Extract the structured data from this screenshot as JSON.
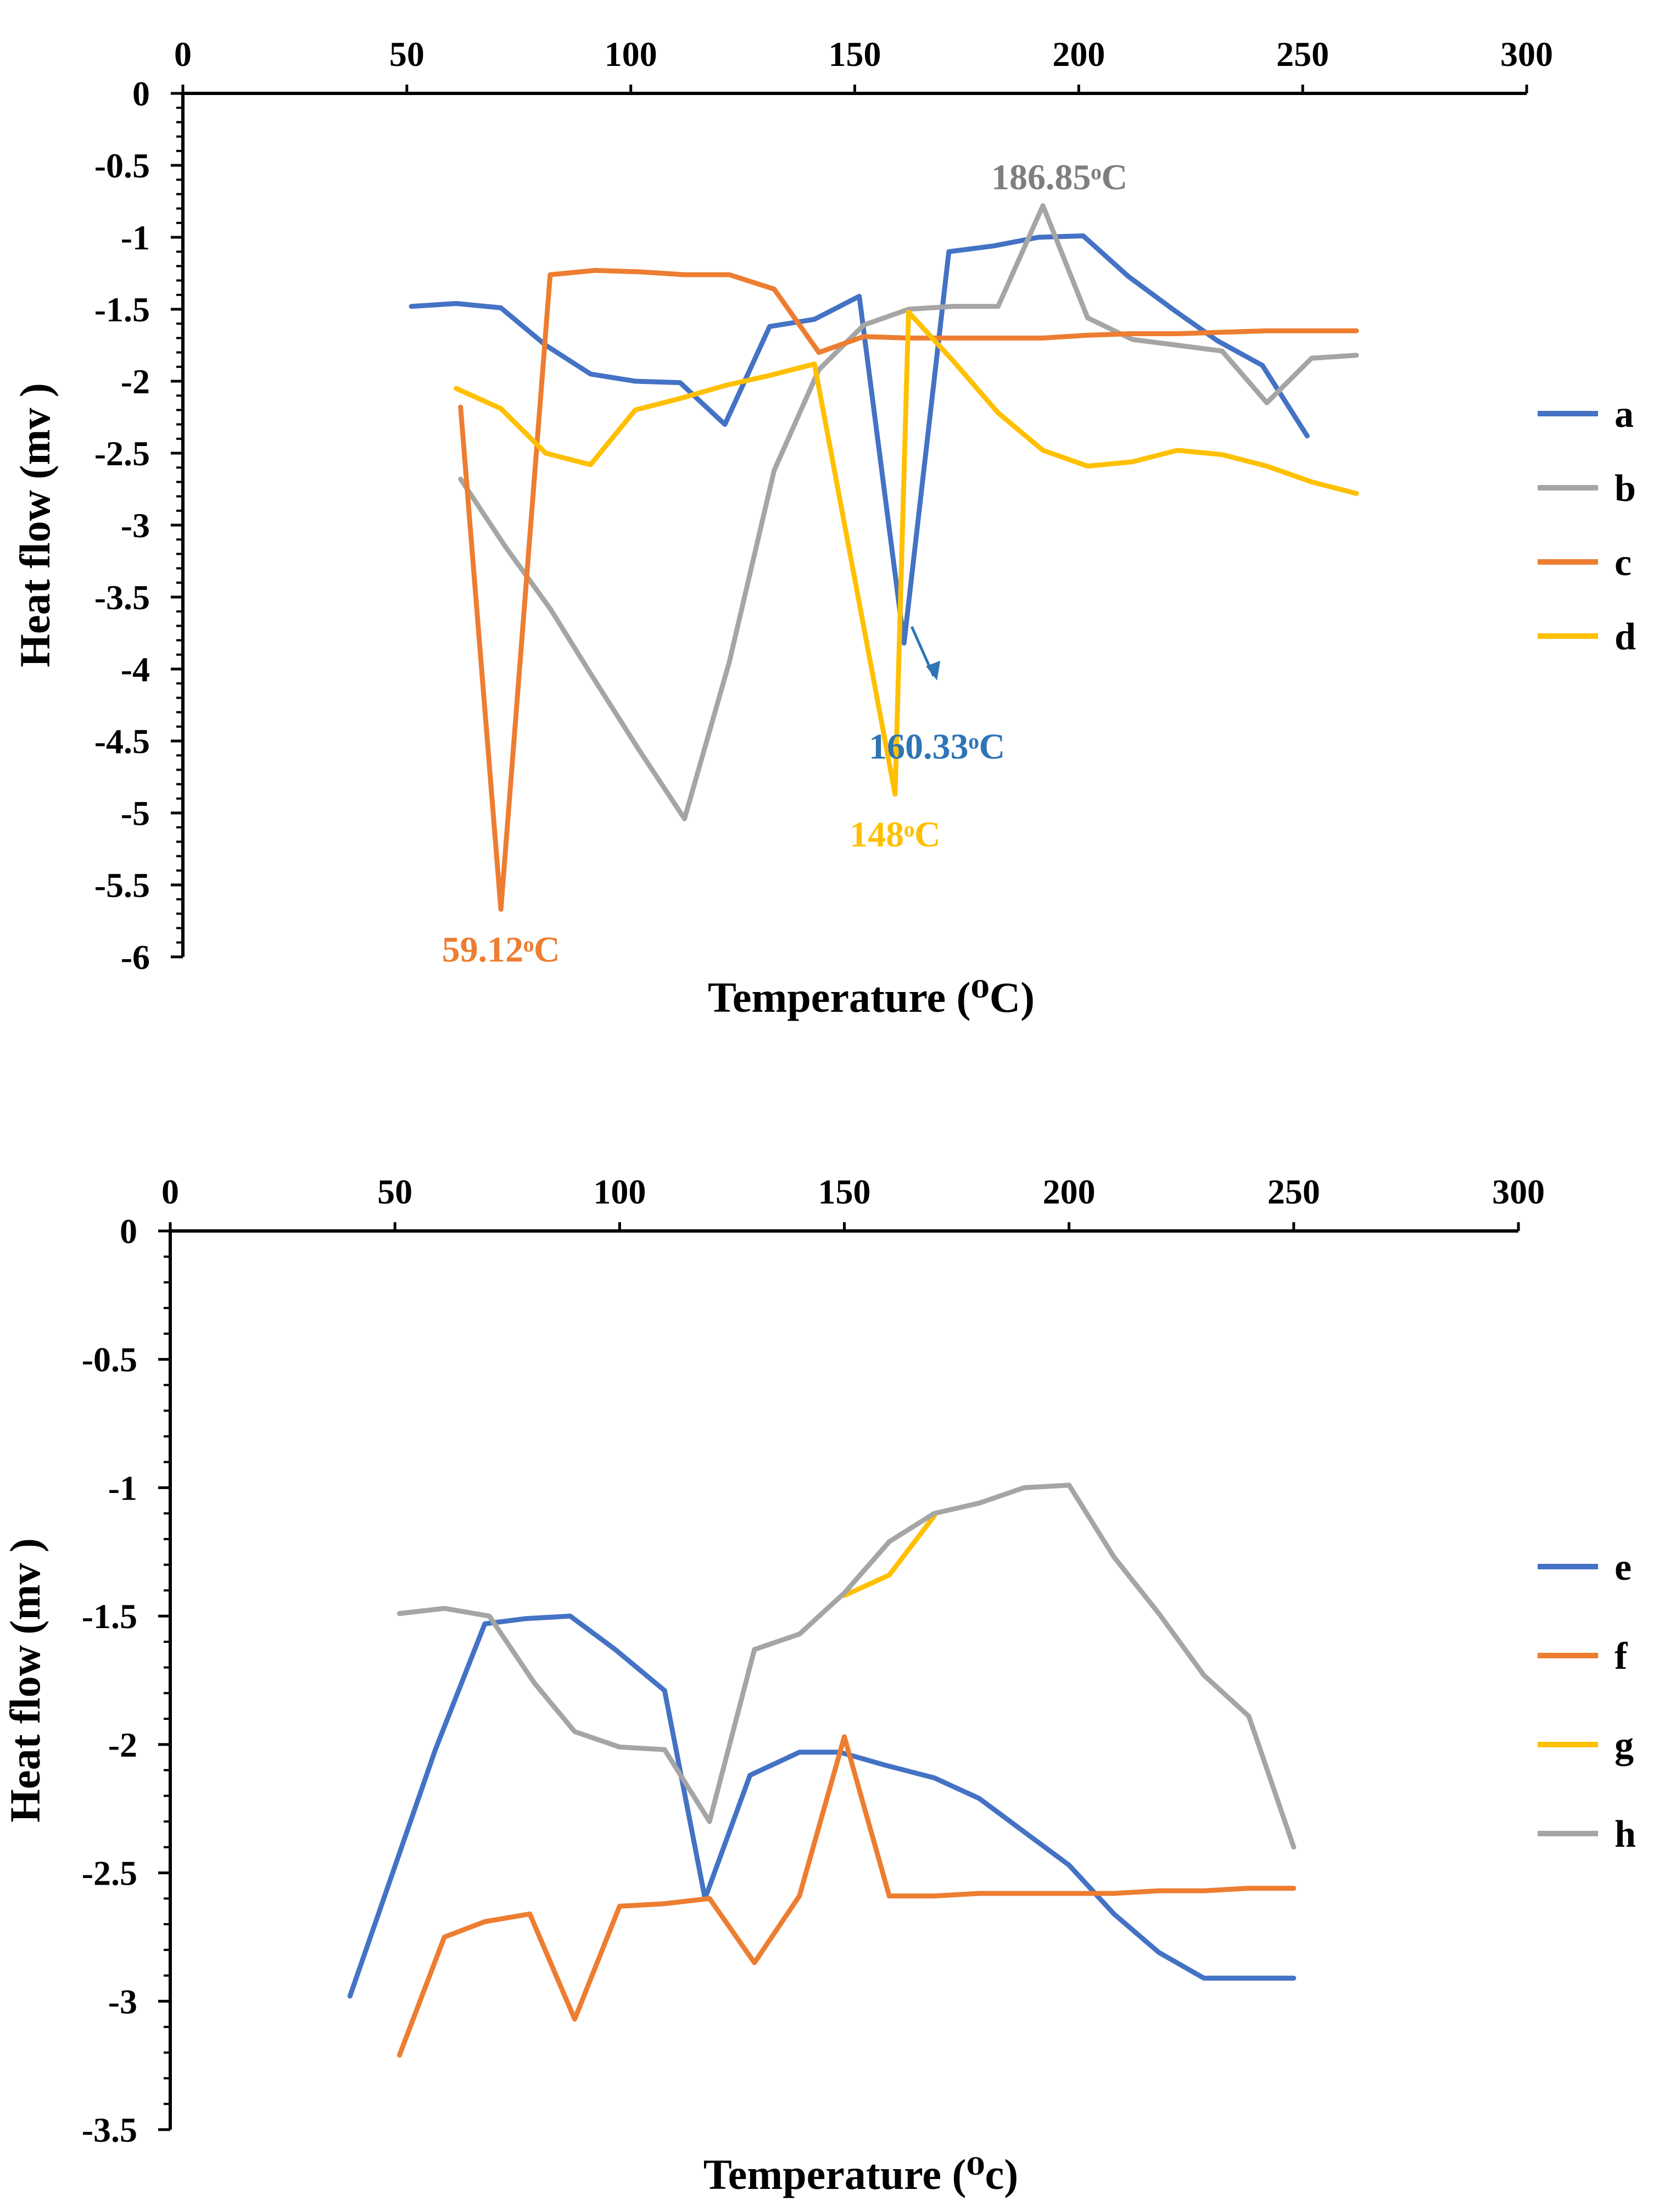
{
  "chart_data": [
    {
      "type": "line",
      "xlabel": "Temperature  (⁰C)",
      "ylabel": "Heat flow (mv )",
      "xlim": [
        0,
        300
      ],
      "ylim": [
        -6,
        0
      ],
      "xticks": [
        "0",
        "50",
        "100",
        "150",
        "200",
        "250",
        "300"
      ],
      "yticks": [
        "0",
        "-0.5",
        "-1",
        "-1.5",
        "-2",
        "-2.5",
        "-3",
        "-3.5",
        "-4",
        "-4.5",
        "-5",
        "-5.5",
        "-6"
      ],
      "legend_position": "right",
      "series": [
        {
          "name": "a",
          "color": "#4472C4",
          "x": [
            51,
            61,
            71,
            81,
            91,
            101,
            111,
            121,
            131,
            141,
            151,
            161,
            171,
            181,
            191,
            201,
            211,
            221,
            231,
            241,
            251
          ],
          "y": [
            -1.48,
            -1.46,
            -1.49,
            -1.75,
            -1.95,
            -2.0,
            -2.01,
            -2.3,
            -1.62,
            -1.57,
            -1.41,
            -3.82,
            -1.1,
            -1.06,
            -1.0,
            -0.99,
            -1.27,
            -1.5,
            -1.72,
            -1.89,
            -2.38
          ]
        },
        {
          "name": "b",
          "color": "#A5A5A5",
          "x": [
            62,
            72,
            82,
            92,
            102,
            112,
            122,
            132,
            142,
            152,
            162,
            172,
            182,
            192,
            202,
            212,
            222,
            232,
            242,
            252,
            262
          ],
          "y": [
            -2.68,
            -3.15,
            -3.58,
            -4.08,
            -4.57,
            -5.04,
            -3.95,
            -2.62,
            -1.92,
            -1.61,
            -1.5,
            -1.48,
            -1.48,
            -0.78,
            -1.56,
            -1.71,
            -1.75,
            -1.79,
            -2.15,
            -1.84,
            -1.82
          ]
        },
        {
          "name": "c",
          "color": "#ED7D31",
          "x": [
            62,
            71,
            82,
            92,
            102,
            112,
            122,
            132,
            142,
            152,
            162,
            172,
            182,
            192,
            202,
            212,
            222,
            232,
            242,
            252,
            262
          ],
          "y": [
            -2.18,
            -5.67,
            -1.26,
            -1.23,
            -1.24,
            -1.26,
            -1.26,
            -1.36,
            -1.8,
            -1.69,
            -1.7,
            -1.7,
            -1.7,
            -1.7,
            -1.68,
            -1.67,
            -1.67,
            -1.66,
            -1.65,
            -1.65,
            -1.65
          ]
        },
        {
          "name": "d",
          "color": "#FFC000",
          "x": [
            61,
            71,
            81,
            91,
            101,
            111,
            121,
            131,
            141,
            159,
            162,
            172,
            182,
            192,
            202,
            212,
            222,
            232,
            242,
            252,
            262
          ],
          "y": [
            -2.05,
            -2.19,
            -2.5,
            -2.58,
            -2.2,
            -2.12,
            -2.03,
            -1.96,
            -1.88,
            -4.87,
            -1.52,
            -1.86,
            -2.22,
            -2.48,
            -2.59,
            -2.56,
            -2.48,
            -2.51,
            -2.59,
            -2.7,
            -2.78
          ]
        }
      ],
      "annotations": [
        {
          "text": "59.12ᵒC",
          "x": 71,
          "y": -5.67,
          "color": "#ED7D31"
        },
        {
          "text": "148ᵒC",
          "x": 159,
          "y": -4.87,
          "color": "#FFC000"
        },
        {
          "text": "160.33ᵒC",
          "x": 161,
          "y": -3.82,
          "color": "#2E75B6"
        },
        {
          "text": "186.85ᵒC",
          "x": 192,
          "y": -0.78,
          "color": "#7F7F7F"
        }
      ]
    },
    {
      "type": "line",
      "xlabel": "Temperature  (⁰c)",
      "ylabel": "Heat flow (mv )",
      "xlim": [
        0,
        300
      ],
      "ylim": [
        -3.5,
        0
      ],
      "xticks": [
        "0",
        "50",
        "100",
        "150",
        "200",
        "250",
        "300"
      ],
      "yticks": [
        "0",
        "-0.5",
        "-1",
        "-1.5",
        "-2",
        "-2.5",
        "-3",
        "-3.5"
      ],
      "legend_position": "right",
      "series": [
        {
          "name": "e",
          "color": "#4472C4",
          "x": [
            40,
            59,
            70,
            79,
            89,
            99,
            110,
            119,
            129,
            140,
            149,
            159,
            170,
            180,
            190,
            200,
            210,
            220,
            230,
            240,
            250
          ],
          "y": [
            -2.98,
            -2.02,
            -1.53,
            -1.51,
            -1.5,
            -1.63,
            -1.79,
            -2.6,
            -2.12,
            -2.03,
            -2.03,
            -2.08,
            -2.13,
            -2.21,
            -2.34,
            -2.47,
            -2.66,
            -2.81,
            -2.91,
            -2.91,
            -2.91
          ]
        },
        {
          "name": "f",
          "color": "#ED7D31",
          "x": [
            51,
            61,
            70,
            80,
            90,
            100,
            110,
            120,
            130,
            140,
            150,
            160,
            170,
            180,
            190,
            200,
            210,
            220,
            230,
            240,
            250
          ],
          "y": [
            -3.21,
            -2.75,
            -2.69,
            -2.66,
            -3.07,
            -2.63,
            -2.62,
            -2.6,
            -2.85,
            -2.59,
            -1.97,
            -2.59,
            -2.59,
            -2.58,
            -2.58,
            -2.58,
            -2.58,
            -2.57,
            -2.57,
            -2.56,
            -2.56
          ]
        },
        {
          "name": "g",
          "color": "#FFC000",
          "x": [
            150,
            160,
            170
          ],
          "y": [
            -1.42,
            -1.34,
            -1.11
          ]
        },
        {
          "name": "h",
          "color": "#A5A5A5",
          "x": [
            51,
            61,
            71,
            81,
            90,
            100,
            110,
            120,
            130,
            140,
            150,
            160,
            170,
            180,
            190,
            200,
            210,
            220,
            230,
            240,
            250
          ],
          "y": [
            -1.49,
            -1.47,
            -1.5,
            -1.76,
            -1.95,
            -2.01,
            -2.02,
            -2.3,
            -1.63,
            -1.57,
            -1.41,
            -1.21,
            -1.1,
            -1.06,
            -1.0,
            -0.99,
            -1.27,
            -1.49,
            -1.73,
            -1.89,
            -2.4
          ]
        }
      ],
      "annotations": []
    }
  ]
}
